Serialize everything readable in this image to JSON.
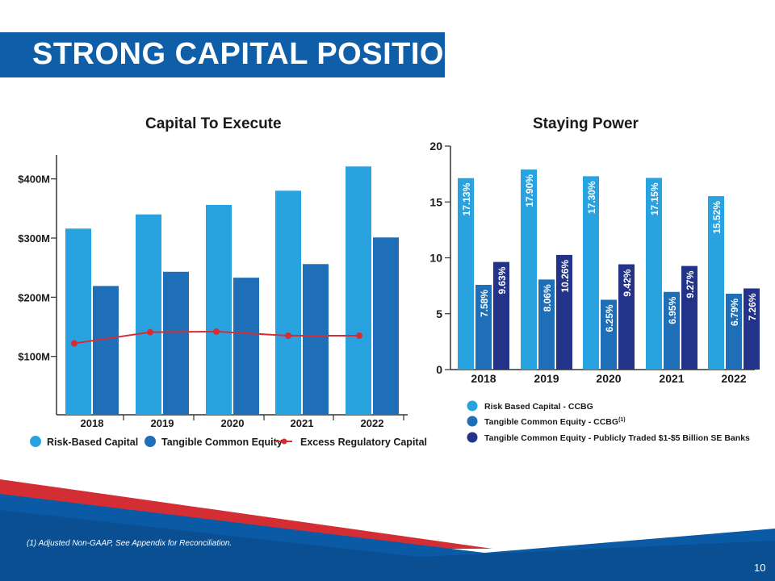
{
  "slide": {
    "title": "STRONG CAPITAL POSITION",
    "footnote": "(1) Adjusted Non-GAAP, See Appendix for Reconciliation.",
    "page_number": "10"
  },
  "colors": {
    "title_bar": "#0f5fa8",
    "light_blue": "#29a3e0",
    "mid_blue": "#1f6fb8",
    "dark_navy": "#23338a",
    "red": "#d42e35",
    "footer_blue": "#0a5aa6"
  },
  "chart_data": [
    {
      "type": "bar",
      "title": "Capital To Execute",
      "categories": [
        "2018",
        "2019",
        "2020",
        "2021",
        "2022"
      ],
      "y_tick_labels": [
        "$100M",
        "$200M",
        "$300M",
        "$400M"
      ],
      "y_ticks": [
        100,
        200,
        300,
        400
      ],
      "ylim": [
        0,
        435
      ],
      "series": [
        {
          "name": "Risk-Based Capital",
          "kind": "bar",
          "color": "#29a3e0",
          "values": [
            316,
            340,
            356,
            380,
            421
          ]
        },
        {
          "name": "Tangible Common Equity",
          "kind": "bar",
          "color": "#1f6fb8",
          "values": [
            219,
            243,
            233,
            256,
            301
          ]
        },
        {
          "name": "Excess Regulatory Capital",
          "kind": "line",
          "color": "#d42e35",
          "values": [
            122,
            141,
            142,
            135,
            135
          ]
        }
      ],
      "legend_position": "bottom"
    },
    {
      "type": "bar",
      "title": "Staying Power",
      "categories": [
        "2018",
        "2019",
        "2020",
        "2021",
        "2022"
      ],
      "y_ticks": [
        0,
        5,
        10,
        15,
        20
      ],
      "ylim": [
        0,
        20
      ],
      "series": [
        {
          "name": "Risk Based Capital - CCBG",
          "color": "#29a3e0",
          "values": [
            17.13,
            17.9,
            17.3,
            17.15,
            15.52
          ],
          "labels": [
            "17.13%",
            "17.90%",
            "17.30%",
            "17.15%",
            "15.52%"
          ]
        },
        {
          "name": "Tangible Common Equity - CCBG",
          "name_superscript": "(1)",
          "color": "#1f6fb8",
          "values": [
            7.58,
            8.06,
            6.25,
            6.95,
            6.79
          ],
          "labels": [
            "7.58%",
            "8.06%",
            "6.25%",
            "6.95%",
            "6.79%"
          ]
        },
        {
          "name": "Tangible Common Equity - Publicly Traded $1-$5 Billion SE Banks",
          "color": "#23338a",
          "values": [
            9.63,
            10.26,
            9.42,
            9.27,
            7.26
          ],
          "labels": [
            "9.63%",
            "10.26%",
            "9.42%",
            "9.27%",
            "7.26%"
          ]
        }
      ],
      "legend_position": "bottom"
    }
  ]
}
